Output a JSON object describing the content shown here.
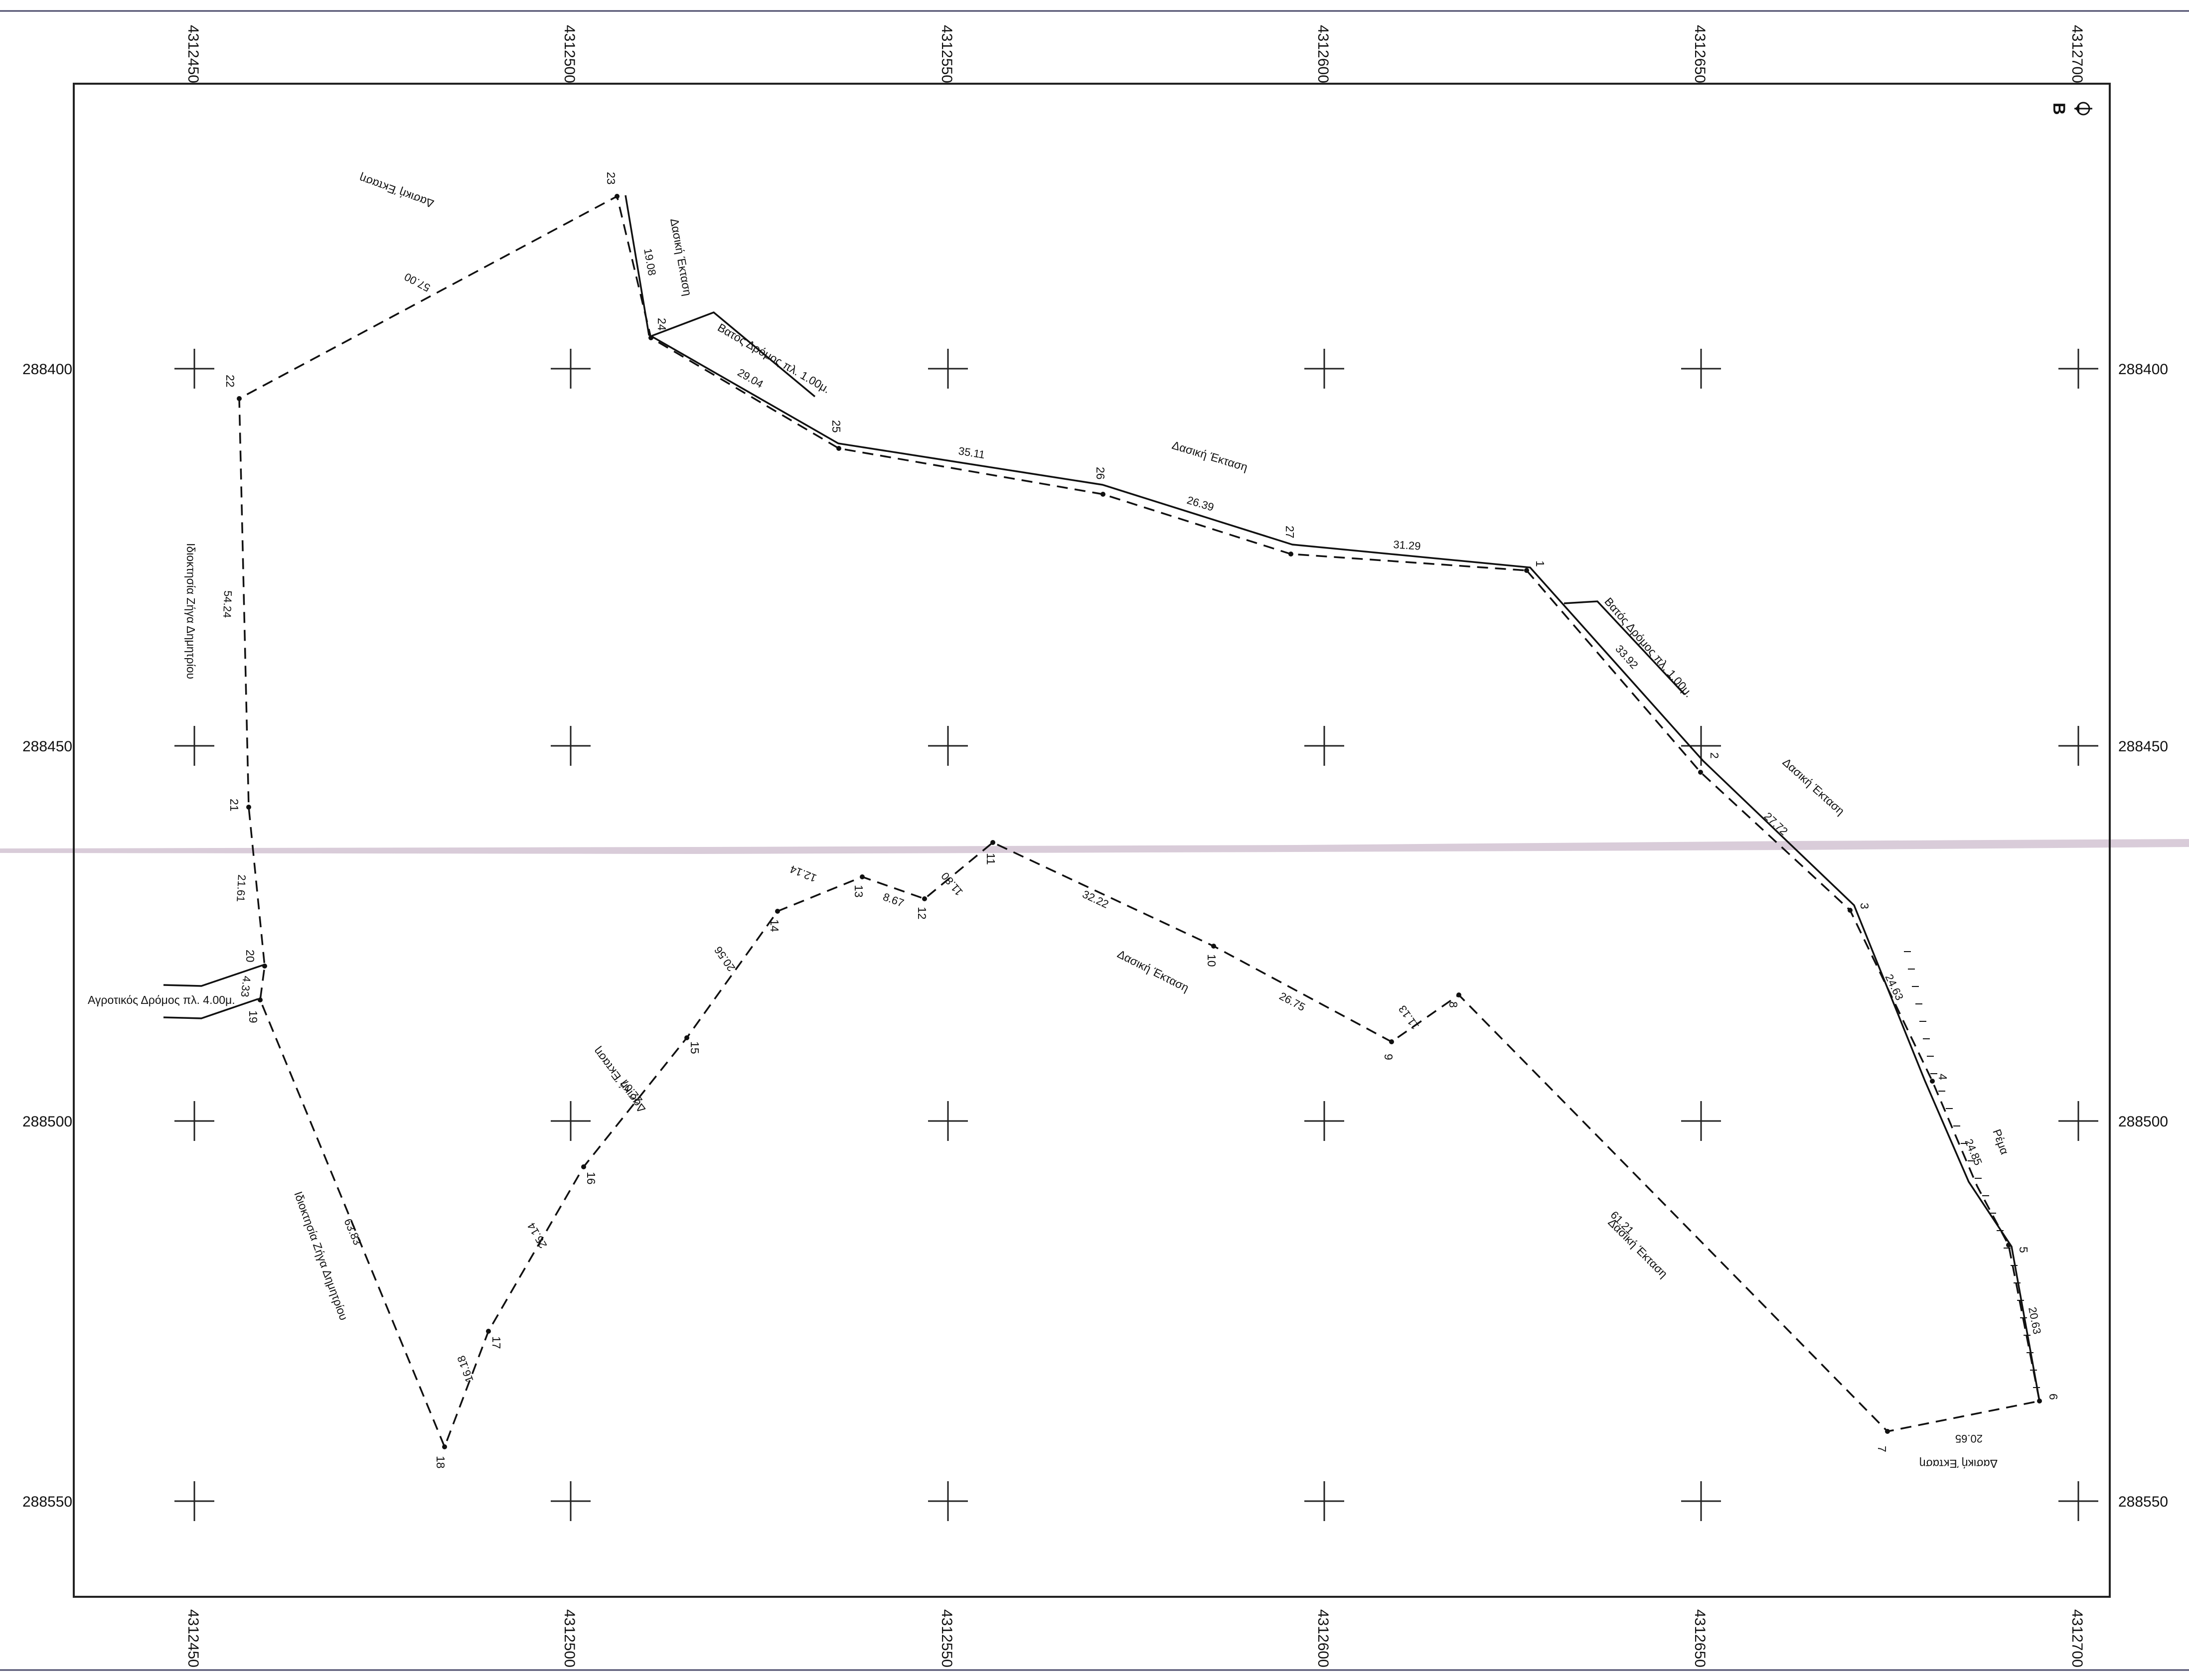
{
  "north_label": "B",
  "grid": {
    "x_labels": [
      "4312450",
      "4312500",
      "4312550",
      "4312600",
      "4312650",
      "4312700"
    ],
    "y_labels": [
      "288400",
      "288450",
      "288500",
      "288550"
    ]
  },
  "vertices": [
    "1",
    "2",
    "3",
    "4",
    "5",
    "6",
    "7",
    "8",
    "9",
    "10",
    "11",
    "12",
    "13",
    "14",
    "15",
    "16",
    "17",
    "18",
    "19",
    "20",
    "21",
    "22",
    "23",
    "24",
    "25",
    "26",
    "27"
  ],
  "distances": [
    "33.92",
    "27.72",
    "24.63",
    "24.85",
    "20.63",
    "20.65",
    "61.21",
    "11.13",
    "26.75",
    "32.22",
    "11.80",
    "8.67",
    "12.14",
    "20.56",
    "22.07",
    "25.14",
    "16.18",
    "63.83",
    "4.33",
    "21.61",
    "54.24",
    "57.00",
    "19.08",
    "29.04",
    "35.11",
    "26.39",
    "31.29"
  ],
  "area_labels": {
    "forest_1": "Δασική Έκταση",
    "forest_2": "Δασική Έκταση",
    "forest_3": "Δασική Έκταση",
    "forest_4": "Δασική Έκταση",
    "forest_5": "Δασική Έκταση",
    "forest_6": "Δασική Έκταση",
    "forest_7": "Δασική Έκταση",
    "road_top": "Βατός Δρόμος πλ. 1.00μ.",
    "road_right": "Βατός Δρόμος πλ. 1.00μ.",
    "agri_road": "Αγροτικός Δρόμος πλ. 4.00μ.",
    "owner_1": "Ιδιοκτησία Ζήγα Δημητρίου",
    "owner_2": "Ιδιοκτησία Ζήγα Δημητρίου",
    "stream": "Ρέμα"
  }
}
